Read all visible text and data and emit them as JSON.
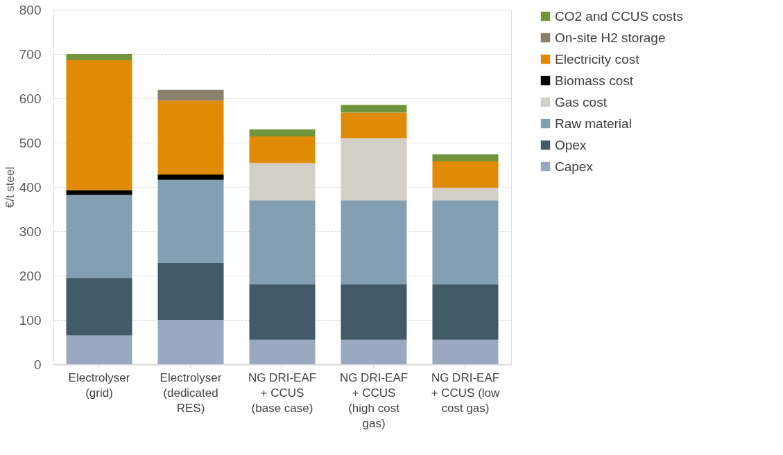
{
  "chart_data": {
    "type": "bar",
    "stacked": true,
    "ylabel": "€/t steel",
    "categories": [
      "Electrolyser (grid)",
      "Electrolyser (dedicated RES)",
      "NG DRI-EAF + CCUS (base case)",
      "NG DRI-EAF + CCUS (high cost gas)",
      "NG DRI-EAF + CCUS (low cost gas)"
    ],
    "series": [
      {
        "name": "Capex",
        "color": "#9ba9c0",
        "values": [
          65,
          100,
          55,
          55,
          55
        ]
      },
      {
        "name": "Opex",
        "color": "#425968",
        "values": [
          130,
          129,
          126,
          126,
          126
        ]
      },
      {
        "name": "Raw material",
        "color": "#849fb2",
        "values": [
          187,
          187,
          189,
          189,
          189
        ]
      },
      {
        "name": "Gas cost",
        "color": "#d2cfc7",
        "values": [
          0,
          0,
          84,
          140,
          28
        ]
      },
      {
        "name": "Biomass cost",
        "color": "#000000",
        "values": [
          11,
          12,
          0,
          0,
          0
        ]
      },
      {
        "name": "Electricity cost",
        "color": "#e08b05",
        "values": [
          293,
          167,
          60,
          58,
          60
        ]
      },
      {
        "name": "On-site H2 storage",
        "color": "#8a806c",
        "values": [
          0,
          24,
          0,
          0,
          0
        ]
      },
      {
        "name": "CO2 and CCUS costs",
        "color": "#72943c",
        "values": [
          14,
          0,
          16,
          17,
          16
        ]
      }
    ],
    "ylim": [
      0,
      800
    ],
    "yticks": [
      0,
      100,
      200,
      300,
      400,
      500,
      600,
      700,
      800
    ],
    "grid": "y",
    "legend": "right"
  }
}
